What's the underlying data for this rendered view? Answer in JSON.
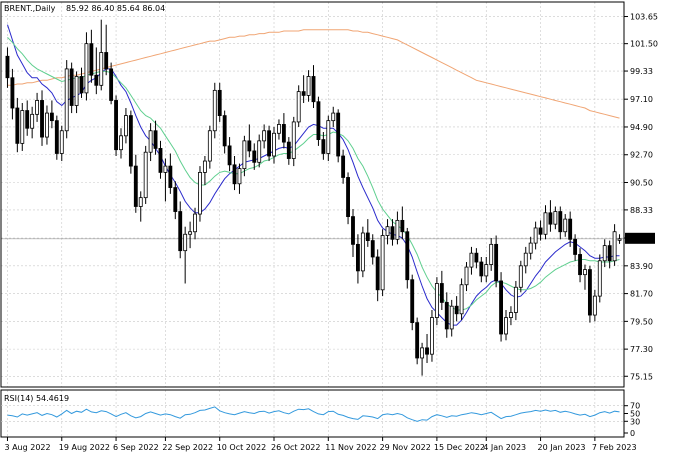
{
  "header": {
    "symbol_label": "BRENT.,Daily",
    "ohlc_label": "85.92 86.40 85.64 86.04"
  },
  "rsi_header": {
    "label": "RSI(14) 54.4619"
  },
  "chart_data": [
    {
      "type": "candlestick",
      "title": "BRENT.,Daily 85.92 86.40 85.64 86.04",
      "ylim": [
        74.3,
        104.8
      ],
      "y_ticks": [
        103.65,
        101.5,
        99.33,
        97.1,
        94.9,
        92.7,
        90.5,
        88.33,
        86.1,
        83.9,
        81.7,
        79.5,
        77.3,
        75.15
      ],
      "current_price": 86.04,
      "x_ticks": [
        "3 Aug 2022",
        "19 Aug 2022",
        "6 Sep 2022",
        "22 Sep 2022",
        "10 Oct 2022",
        "26 Oct 2022",
        "11 Nov 2022",
        "29 Nov 2022",
        "15 Dec 2022",
        "4 Jan 2023",
        "20 Jan 2023",
        "7 Feb 2023"
      ],
      "grid": true,
      "candles": [
        [
          100.5,
          101.2,
          98.0,
          98.8
        ],
        [
          98.8,
          99.5,
          95.5,
          96.4
        ],
        [
          96.4,
          97.2,
          92.9,
          93.6
        ],
        [
          93.6,
          96.8,
          93.0,
          96.2
        ],
        [
          96.2,
          97.0,
          94.2,
          94.8
        ],
        [
          94.8,
          96.5,
          94.0,
          95.9
        ],
        [
          95.9,
          97.6,
          95.3,
          97.0
        ],
        [
          97.0,
          97.8,
          93.4,
          94.1
        ],
        [
          94.1,
          96.6,
          93.5,
          96.0
        ],
        [
          96.0,
          97.0,
          94.8,
          95.4
        ],
        [
          95.4,
          95.8,
          92.3,
          92.8
        ],
        [
          92.8,
          95.0,
          92.2,
          94.6
        ],
        [
          94.6,
          100.2,
          94.0,
          99.5
        ],
        [
          99.5,
          100.0,
          96.0,
          96.6
        ],
        [
          96.6,
          99.3,
          96.0,
          98.9
        ],
        [
          98.9,
          99.6,
          97.2,
          97.6
        ],
        [
          97.6,
          102.4,
          97.0,
          101.5
        ],
        [
          101.5,
          102.6,
          98.4,
          99.0
        ],
        [
          99.0,
          101.2,
          97.5,
          98.2
        ],
        [
          98.2,
          103.4,
          97.8,
          100.8
        ],
        [
          100.8,
          103.0,
          99.0,
          99.5
        ],
        [
          99.5,
          100.0,
          96.7,
          97.0
        ],
        [
          97.0,
          97.4,
          92.6,
          93.1
        ],
        [
          93.1,
          94.8,
          92.4,
          94.2
        ],
        [
          94.2,
          96.4,
          93.6,
          95.8
        ],
        [
          95.8,
          96.2,
          91.2,
          91.8
        ],
        [
          91.8,
          92.7,
          88.1,
          88.6
        ],
        [
          88.6,
          89.8,
          87.4,
          89.3
        ],
        [
          89.3,
          93.4,
          88.8,
          92.9
        ],
        [
          92.9,
          95.2,
          92.2,
          94.6
        ],
        [
          94.6,
          95.4,
          92.7,
          93.2
        ],
        [
          93.2,
          93.8,
          90.8,
          91.3
        ],
        [
          91.3,
          92.4,
          89.0,
          91.8
        ],
        [
          91.8,
          92.8,
          89.6,
          90.1
        ],
        [
          90.1,
          90.6,
          87.6,
          88.2
        ],
        [
          88.2,
          89.0,
          84.5,
          85.1
        ],
        [
          85.1,
          87.0,
          82.5,
          86.4
        ],
        [
          86.4,
          87.4,
          85.3,
          86.6
        ],
        [
          86.6,
          88.5,
          86.0,
          88.0
        ],
        [
          88.0,
          91.8,
          87.4,
          91.3
        ],
        [
          91.3,
          92.6,
          90.3,
          92.2
        ],
        [
          92.2,
          95.0,
          91.6,
          94.6
        ],
        [
          94.6,
          98.4,
          94.0,
          97.8
        ],
        [
          97.8,
          98.4,
          95.3,
          95.8
        ],
        [
          95.8,
          96.2,
          92.8,
          93.4
        ],
        [
          93.4,
          94.1,
          91.4,
          91.9
        ],
        [
          91.9,
          92.6,
          89.9,
          90.4
        ],
        [
          90.4,
          92.0,
          89.6,
          91.6
        ],
        [
          91.6,
          94.2,
          91.0,
          93.8
        ],
        [
          93.8,
          95.1,
          92.5,
          93.0
        ],
        [
          93.0,
          93.6,
          91.5,
          92.1
        ],
        [
          92.1,
          94.3,
          91.7,
          93.8
        ],
        [
          93.8,
          95.1,
          93.2,
          94.6
        ],
        [
          94.6,
          95.0,
          92.2,
          92.6
        ],
        [
          92.6,
          94.9,
          92.0,
          94.4
        ],
        [
          94.4,
          95.5,
          93.9,
          95.1
        ],
        [
          95.1,
          96.0,
          93.2,
          93.7
        ],
        [
          93.7,
          94.1,
          91.9,
          92.4
        ],
        [
          92.4,
          95.7,
          91.8,
          95.3
        ],
        [
          95.3,
          98.2,
          94.9,
          97.7
        ],
        [
          97.7,
          99.0,
          96.8,
          97.4
        ],
        [
          97.4,
          99.4,
          96.9,
          98.9
        ],
        [
          98.9,
          99.8,
          96.4,
          96.9
        ],
        [
          96.9,
          97.3,
          93.4,
          93.9
        ],
        [
          93.9,
          94.5,
          92.3,
          92.8
        ],
        [
          92.8,
          95.8,
          92.2,
          95.4
        ],
        [
          95.4,
          96.5,
          94.9,
          96.0
        ],
        [
          96.0,
          96.3,
          92.1,
          92.6
        ],
        [
          92.6,
          93.1,
          90.4,
          90.9
        ],
        [
          90.9,
          91.3,
          87.2,
          87.8
        ],
        [
          87.8,
          88.4,
          84.6,
          85.6
        ],
        [
          85.6,
          86.4,
          82.5,
          83.5
        ],
        [
          83.5,
          87.0,
          83.0,
          86.5
        ],
        [
          86.5,
          87.6,
          85.4,
          85.9
        ],
        [
          85.9,
          86.4,
          84.0,
          84.6
        ],
        [
          84.6,
          85.2,
          81.1,
          82.0
        ],
        [
          82.0,
          86.8,
          81.5,
          86.3
        ],
        [
          86.3,
          87.6,
          85.6,
          87.0
        ],
        [
          87.0,
          87.6,
          85.5,
          86.0
        ],
        [
          86.0,
          88.2,
          85.6,
          87.5
        ],
        [
          87.5,
          88.6,
          86.0,
          86.6
        ],
        [
          86.6,
          86.9,
          82.1,
          82.8
        ],
        [
          82.8,
          83.2,
          78.8,
          79.4
        ],
        [
          79.4,
          79.8,
          76.1,
          76.6
        ],
        [
          76.6,
          77.8,
          75.2,
          77.4
        ],
        [
          77.4,
          78.5,
          76.2,
          76.9
        ],
        [
          76.9,
          80.4,
          76.3,
          79.8
        ],
        [
          79.8,
          83.0,
          79.2,
          82.5
        ],
        [
          82.5,
          83.5,
          80.4,
          81.0
        ],
        [
          81.0,
          81.8,
          78.2,
          78.9
        ],
        [
          78.9,
          81.2,
          78.3,
          80.7
        ],
        [
          80.7,
          81.5,
          79.5,
          80.1
        ],
        [
          80.1,
          82.9,
          79.6,
          82.4
        ],
        [
          82.4,
          84.2,
          81.9,
          83.8
        ],
        [
          83.8,
          85.4,
          83.2,
          84.9
        ],
        [
          84.9,
          85.3,
          83.7,
          84.2
        ],
        [
          84.2,
          84.6,
          82.6,
          83.1
        ],
        [
          83.1,
          84.6,
          82.6,
          84.0
        ],
        [
          84.0,
          86.1,
          83.5,
          85.6
        ],
        [
          85.6,
          86.3,
          82.2,
          82.7
        ],
        [
          82.7,
          83.4,
          77.9,
          78.5
        ],
        [
          78.5,
          80.4,
          78.0,
          79.8
        ],
        [
          79.8,
          80.7,
          79.2,
          80.2
        ],
        [
          80.2,
          82.7,
          79.6,
          82.2
        ],
        [
          82.2,
          84.3,
          81.8,
          83.9
        ],
        [
          83.9,
          85.4,
          83.3,
          84.9
        ],
        [
          84.9,
          86.2,
          84.4,
          85.7
        ],
        [
          85.7,
          87.4,
          85.2,
          86.9
        ],
        [
          86.9,
          87.5,
          85.9,
          86.4
        ],
        [
          86.4,
          88.7,
          86.0,
          88.1
        ],
        [
          88.1,
          89.1,
          86.6,
          87.2
        ],
        [
          87.2,
          88.6,
          86.8,
          88.2
        ],
        [
          88.2,
          88.6,
          86.0,
          86.6
        ],
        [
          86.6,
          88.0,
          86.2,
          87.6
        ],
        [
          87.6,
          88.2,
          85.4,
          86.0
        ],
        [
          86.0,
          86.4,
          84.3,
          84.8
        ],
        [
          84.8,
          85.3,
          82.6,
          83.2
        ],
        [
          83.2,
          84.0,
          82.0,
          83.6
        ],
        [
          83.6,
          83.9,
          79.4,
          80.0
        ],
        [
          80.0,
          82.0,
          79.5,
          81.5
        ],
        [
          81.5,
          84.8,
          81.0,
          84.3
        ],
        [
          84.3,
          86.0,
          83.8,
          85.5
        ],
        [
          85.5,
          85.9,
          83.7,
          84.3
        ],
        [
          84.3,
          87.2,
          83.9,
          86.6
        ],
        [
          85.92,
          86.4,
          85.64,
          86.04
        ]
      ],
      "overlays": {
        "ma_slow": [
          98.2,
          98.2,
          98.3,
          98.3,
          98.4,
          98.4,
          98.5,
          98.6,
          98.6,
          98.7,
          98.8,
          98.8,
          98.9,
          99.0,
          99.0,
          99.1,
          99.2,
          99.3,
          99.4,
          99.5,
          99.6,
          99.7,
          99.8,
          99.9,
          100.0,
          100.1,
          100.2,
          100.3,
          100.4,
          100.5,
          100.6,
          100.7,
          100.8,
          100.9,
          101.0,
          101.1,
          101.2,
          101.3,
          101.4,
          101.5,
          101.6,
          101.7,
          101.7,
          101.8,
          101.9,
          102.0,
          102.0,
          102.1,
          102.1,
          102.2,
          102.2,
          102.3,
          102.3,
          102.4,
          102.4,
          102.4,
          102.5,
          102.5,
          102.5,
          102.5,
          102.6,
          102.6,
          102.6,
          102.6,
          102.6,
          102.6,
          102.6,
          102.6,
          102.6,
          102.6,
          102.5,
          102.5,
          102.4,
          102.4,
          102.3,
          102.2,
          102.1,
          102.0,
          101.9,
          101.8,
          101.6,
          101.4,
          101.2,
          101.0,
          100.8,
          100.6,
          100.4,
          100.2,
          100.0,
          99.8,
          99.6,
          99.4,
          99.2,
          99.0,
          98.8,
          98.6,
          98.5,
          98.4,
          98.3,
          98.2,
          98.1,
          98.0,
          97.9,
          97.8,
          97.7,
          97.6,
          97.5,
          97.4,
          97.3,
          97.2,
          97.1,
          97.0,
          96.9,
          96.8,
          96.7,
          96.6,
          96.5,
          96.4,
          96.2,
          96.1,
          96.0,
          95.9,
          95.8,
          95.7,
          95.6
        ],
        "ma_fast": [
          102.0,
          101.6,
          101.1,
          100.7,
          100.2,
          99.8,
          99.5,
          99.3,
          99.1,
          98.9,
          98.7,
          98.5,
          98.6,
          98.7,
          98.8,
          98.8,
          99.0,
          99.1,
          99.2,
          99.3,
          99.3,
          99.2,
          98.8,
          98.4,
          98.0,
          97.4,
          96.8,
          96.2,
          95.8,
          95.6,
          95.2,
          94.8,
          94.2,
          93.6,
          93.0,
          92.2,
          91.5,
          90.9,
          90.5,
          90.3,
          90.3,
          90.6,
          91.0,
          91.3,
          91.4,
          91.3,
          91.2,
          91.2,
          91.4,
          91.6,
          91.7,
          91.9,
          92.2,
          92.3,
          92.5,
          92.7,
          92.8,
          92.8,
          93.0,
          93.3,
          93.6,
          94.0,
          94.3,
          94.3,
          94.2,
          94.3,
          94.5,
          94.4,
          94.2,
          93.8,
          93.2,
          92.4,
          91.8,
          91.0,
          90.1,
          89.1,
          88.4,
          87.9,
          87.4,
          87.1,
          86.8,
          86.3,
          85.6,
          84.8,
          83.8,
          83.0,
          82.3,
          81.8,
          81.4,
          80.9,
          80.6,
          80.4,
          80.4,
          80.5,
          80.8,
          81.2,
          81.5,
          81.8,
          82.3,
          82.6,
          82.6,
          82.5,
          82.3,
          82.1,
          82.0,
          82.0,
          82.1,
          82.3,
          82.6,
          83.0,
          83.3,
          83.6,
          83.8,
          84.0,
          84.2,
          84.3,
          84.4,
          84.4,
          84.3,
          84.3,
          84.2,
          84.2,
          84.2,
          84.3,
          84.4
        ],
        "ma_medium": [
          103.0,
          101.8,
          100.6,
          99.9,
          99.2,
          98.8,
          98.8,
          98.3,
          98.0,
          97.6,
          96.9,
          96.6,
          97.0,
          97.2,
          97.4,
          97.6,
          98.3,
          98.6,
          98.8,
          99.2,
          99.5,
          99.5,
          98.9,
          98.2,
          97.7,
          96.8,
          95.8,
          94.9,
          94.2,
          93.8,
          93.2,
          92.6,
          91.8,
          91.1,
          90.5,
          89.8,
          89.0,
          88.5,
          88.1,
          88.1,
          88.4,
          88.9,
          89.6,
          90.2,
          90.8,
          91.2,
          91.5,
          91.8,
          92.1,
          92.2,
          92.3,
          92.4,
          92.6,
          92.8,
          93.0,
          93.2,
          93.3,
          93.2,
          93.4,
          93.9,
          94.4,
          94.9,
          95.1,
          95.0,
          94.8,
          94.8,
          94.8,
          94.4,
          93.9,
          93.1,
          92.1,
          91.0,
          90.1,
          89.3,
          88.5,
          87.5,
          86.9,
          86.6,
          86.4,
          86.3,
          86.1,
          85.5,
          84.6,
          83.4,
          82.3,
          81.3,
          80.6,
          80.2,
          79.8,
          79.4,
          79.2,
          79.2,
          79.6,
          80.2,
          80.9,
          81.5,
          81.9,
          82.2,
          82.6,
          82.8,
          82.5,
          82.0,
          81.6,
          81.4,
          81.5,
          81.9,
          82.5,
          83.1,
          83.6,
          84.2,
          84.6,
          85.0,
          85.3,
          85.6,
          85.8,
          85.7,
          85.4,
          85.1,
          84.7,
          84.5,
          84.5,
          84.6,
          84.6,
          84.7,
          84.7
        ],
        "styles": {
          "ma_slow_color": "#f0a574",
          "ma_medium_color": "#2a2acc",
          "ma_fast_color": "#5fcf8f",
          "candle_color": "#000000",
          "price_tag_color": "#000000"
        }
      }
    },
    {
      "type": "line",
      "title": "RSI(14) 54.4619",
      "ylim": [
        0,
        100
      ],
      "y_ticks": [
        70,
        50,
        30,
        0
      ],
      "line_color": "#3399dd",
      "values": [
        46,
        44,
        41,
        49,
        46,
        49,
        52,
        45,
        50,
        47,
        41,
        49,
        58,
        50,
        56,
        53,
        61,
        54,
        52,
        57,
        55,
        49,
        42,
        48,
        52,
        44,
        39,
        42,
        50,
        54,
        50,
        46,
        49,
        47,
        42,
        38,
        47,
        48,
        52,
        58,
        59,
        63,
        67,
        57,
        52,
        49,
        47,
        51,
        55,
        52,
        50,
        55,
        56,
        51,
        55,
        57,
        52,
        49,
        56,
        61,
        60,
        62,
        55,
        49,
        47,
        55,
        56,
        48,
        45,
        40,
        37,
        35,
        44,
        43,
        41,
        37,
        47,
        49,
        47,
        50,
        47,
        39,
        34,
        30,
        34,
        33,
        42,
        47,
        44,
        40,
        44,
        43,
        47,
        49,
        52,
        50,
        47,
        50,
        53,
        45,
        37,
        42,
        43,
        47,
        51,
        53,
        55,
        58,
        56,
        59,
        56,
        58,
        53,
        56,
        53,
        49,
        46,
        48,
        42,
        46,
        52,
        55,
        51,
        56,
        54
      ]
    }
  ]
}
